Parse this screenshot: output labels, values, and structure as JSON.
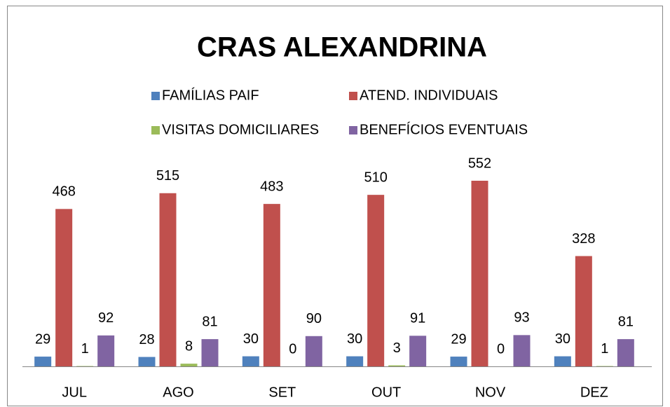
{
  "chart_data": {
    "type": "bar",
    "title": "CRAS ALEXANDRINA",
    "categories": [
      "JUL",
      "AGO",
      "SET",
      "OUT",
      "NOV",
      "DEZ"
    ],
    "series": [
      {
        "name": "FAMÍLIAS PAIF",
        "color": "#4f81bd",
        "values": [
          29,
          28,
          30,
          30,
          29,
          30
        ]
      },
      {
        "name": "ATEND. INDIVIDUAIS",
        "color": "#c0504d",
        "values": [
          468,
          515,
          483,
          510,
          552,
          328
        ]
      },
      {
        "name": "VISITAS DOMICILIARES",
        "color": "#9bbb59",
        "values": [
          1,
          8,
          0,
          3,
          0,
          1
        ]
      },
      {
        "name": "BENEFÍCIOS EVENTUAIS",
        "color": "#8064a2",
        "values": [
          92,
          81,
          90,
          91,
          93,
          81
        ]
      }
    ]
  }
}
